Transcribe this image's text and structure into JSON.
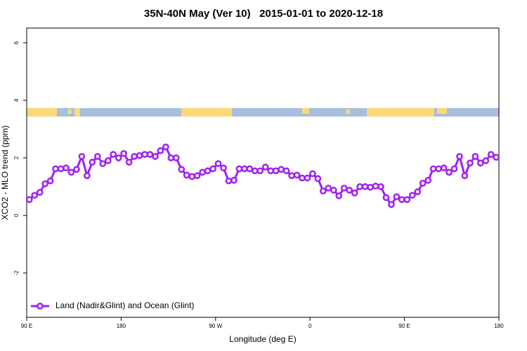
{
  "chart_data": {
    "type": "line",
    "title": "35N-40N May (Ver 10)   2015-01-01 to 2020-12-18",
    "xlabel": "Longitude (deg E)",
    "ylabel": "XCO2 - MLO trend (ppm)",
    "xlim": [
      90,
      540
    ],
    "xticks": [
      {
        "value": 90,
        "label": "90 E"
      },
      180,
      {
        "value": 270,
        "label": "90 W"
      },
      {
        "value": 360,
        "label": "0"
      },
      {
        "value": 450,
        "label": "90 E"
      },
      {
        "value": 540,
        "label": "180"
      }
    ],
    "ylim": [
      -3.54,
      6.51
    ],
    "yticks": [
      -2,
      0,
      2,
      4,
      6
    ],
    "grid": false,
    "legend": "bottomleft",
    "x": [
      92.5,
      97.5,
      102.5,
      107.5,
      112.5,
      117.5,
      122.5,
      127.5,
      132.5,
      137.5,
      142.5,
      147.5,
      152.5,
      157.5,
      162.5,
      167.5,
      172.5,
      177.5,
      182.5,
      187.5,
      192.5,
      197.5,
      202.5,
      207.5,
      212.5,
      217.5,
      222.5,
      227.5,
      232.5,
      237.5,
      242.5,
      247.5,
      252.5,
      257.5,
      262.5,
      267.5,
      272.5,
      277.5,
      282.5,
      287.5,
      292.5,
      297.5,
      302.5,
      307.5,
      312.5,
      317.5,
      322.5,
      327.5,
      332.5,
      337.5,
      342.5,
      347.5,
      352.5,
      357.5,
      362.5,
      367.5,
      372.5,
      377.5,
      382.5,
      387.5,
      392.5,
      397.5,
      402.5,
      407.5,
      412.5,
      417.5,
      422.5,
      427.5,
      432.5,
      437.5,
      442.5,
      447.5,
      452.5,
      457.5,
      462.5,
      467.5,
      472.5,
      477.5,
      482.5,
      487.5,
      492.5,
      497.5,
      502.5,
      507.5,
      512.5,
      517.5,
      522.5,
      527.5,
      532.5,
      537.5
    ],
    "series": [
      {
        "name": "Land (Nadir&Glint) and Ocean (Glint)",
        "color": "#a020f0",
        "values": [
          0.55,
          0.7,
          0.8,
          1.1,
          1.2,
          1.62,
          1.62,
          1.65,
          1.5,
          1.6,
          2.05,
          1.38,
          1.85,
          2.05,
          1.8,
          1.9,
          2.12,
          2.0,
          2.15,
          1.85,
          2.05,
          2.08,
          2.12,
          2.12,
          2.05,
          2.25,
          2.38,
          2.0,
          2.0,
          1.6,
          1.4,
          1.35,
          1.38,
          1.5,
          1.55,
          1.62,
          1.8,
          1.65,
          1.2,
          1.22,
          1.62,
          1.62,
          1.62,
          1.55,
          1.55,
          1.68,
          1.55,
          1.55,
          1.6,
          1.55,
          1.38,
          1.4,
          1.3,
          1.3,
          1.45,
          1.28,
          0.85,
          0.95,
          0.88,
          0.68,
          0.95,
          0.88,
          0.78,
          1.0,
          1.0,
          0.98,
          1.02,
          1.0,
          0.62,
          0.38,
          0.65,
          0.55,
          0.55,
          0.7,
          0.82,
          1.12,
          1.22,
          1.62,
          1.62,
          1.65,
          1.5,
          1.62,
          2.05,
          1.38,
          1.82,
          2.05,
          1.82,
          1.9,
          2.12,
          2.02
        ]
      }
    ]
  }
}
